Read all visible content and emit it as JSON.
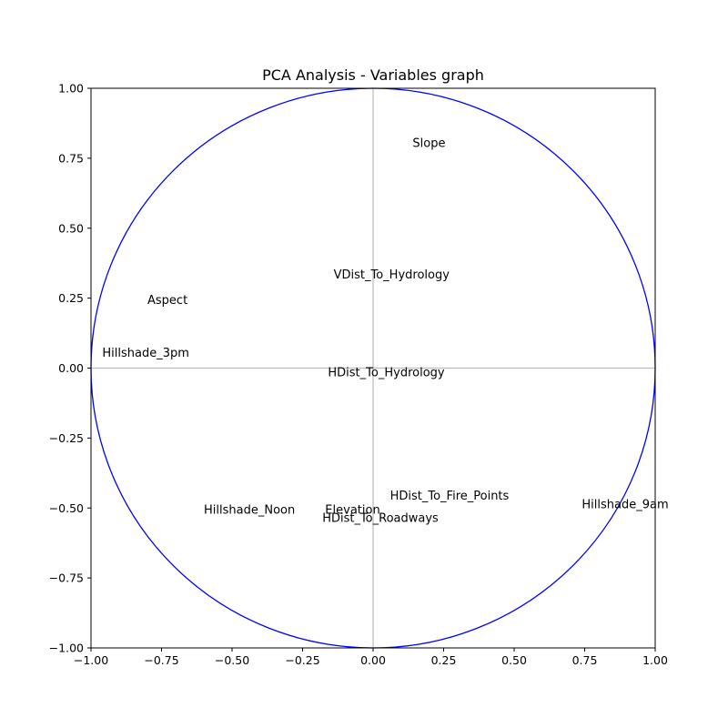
{
  "chart_data": {
    "type": "scatter",
    "title": "PCA Analysis - Variables graph",
    "xlabel": "",
    "ylabel": "",
    "xlim": [
      -1.0,
      1.0
    ],
    "ylim": [
      -1.0,
      1.0
    ],
    "xticks": [
      -1.0,
      -0.75,
      -0.5,
      -0.25,
      0.0,
      0.25,
      0.5,
      0.75,
      1.0
    ],
    "yticks": [
      -1.0,
      -0.75,
      -0.5,
      -0.25,
      0.0,
      0.25,
      0.5,
      0.75,
      1.0
    ],
    "xtick_labels": [
      "−1.00",
      "−0.75",
      "−0.50",
      "−0.25",
      "0.00",
      "0.25",
      "0.50",
      "0.75",
      "1.00"
    ],
    "ytick_labels": [
      "−1.00",
      "−0.75",
      "−0.50",
      "−0.25",
      "0.00",
      "0.25",
      "0.50",
      "0.75",
      "1.00"
    ],
    "grid": false,
    "unit_circle": {
      "radius": 1.0,
      "color": "#0000ff"
    },
    "axis_lines_color": "#bbbbbb",
    "points": [
      {
        "label": "Slope",
        "x": 0.14,
        "y": 0.79
      },
      {
        "label": "VDist_To_Hydrology",
        "x": -0.14,
        "y": 0.32
      },
      {
        "label": "Aspect",
        "x": -0.8,
        "y": 0.23
      },
      {
        "label": "Hillshade_3pm",
        "x": -0.96,
        "y": 0.04
      },
      {
        "label": "HDist_To_Hydrology",
        "x": -0.16,
        "y": -0.03
      },
      {
        "label": "HDist_To_Fire_Points",
        "x": 0.06,
        "y": -0.47
      },
      {
        "label": "Hillshade_9am",
        "x": 0.74,
        "y": -0.5
      },
      {
        "label": "Hillshade_Noon",
        "x": -0.6,
        "y": -0.52
      },
      {
        "label": "Elevation",
        "x": -0.17,
        "y": -0.52
      },
      {
        "label": "HDist_To_Roadways",
        "x": -0.18,
        "y": -0.55
      }
    ]
  }
}
